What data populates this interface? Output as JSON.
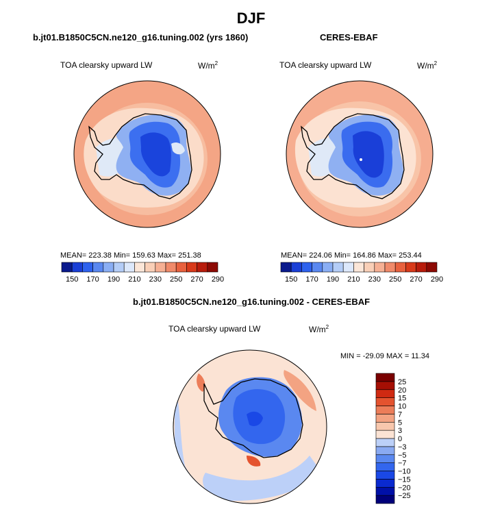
{
  "page": {
    "title": "DJF"
  },
  "panels": [
    {
      "title": "b.jt01.B1850C5CN.ne120_g16.tuning.002 (yrs 1860)",
      "variable": "TOA clearsky upward LW",
      "units_base": "W/m",
      "units_exp": "2",
      "stats": "MEAN= 223.38  Min= 159.63  Max= 251.38"
    },
    {
      "title": "CERES-EBAF",
      "variable": "TOA clearsky upward LW",
      "units_base": "W/m",
      "units_exp": "2",
      "stats": "MEAN= 224.06  Min= 164.86  Max= 253.44"
    },
    {
      "title": "b.jt01.B1850C5CN.ne120_g16.tuning.002 - CERES-EBAF",
      "variable": "TOA clearsky upward LW",
      "units_base": "W/m",
      "units_exp": "2",
      "stats": "MIN = -29.09 MAX =  11.34"
    }
  ],
  "chart_data": [
    {
      "type": "heatmap",
      "projection": "south polar stereographic",
      "title": "b.jt01.B1850C5CN.ne120_g16.tuning.002 (yrs 1860)",
      "variable": "TOA clearsky upward LW",
      "units": "W/m^2",
      "mean": 223.38,
      "min": 159.63,
      "max": 251.38,
      "colorbar": {
        "orientation": "horizontal",
        "levels": [
          150,
          170,
          190,
          210,
          230,
          250,
          270,
          290
        ],
        "colors": [
          "#0a1a8c",
          "#1a3fd6",
          "#2e62ee",
          "#5a88f0",
          "#8aaef4",
          "#b4cdf7",
          "#dce8fb",
          "#fbe6d8",
          "#f9cfb7",
          "#f6b094",
          "#f08a6a",
          "#e8613e",
          "#d83a1a",
          "#b81c0c",
          "#8c0a04"
        ]
      }
    },
    {
      "type": "heatmap",
      "projection": "south polar stereographic",
      "title": "CERES-EBAF",
      "variable": "TOA clearsky upward LW",
      "units": "W/m^2",
      "mean": 224.06,
      "min": 164.86,
      "max": 253.44,
      "colorbar": {
        "orientation": "horizontal",
        "levels": [
          150,
          170,
          190,
          210,
          230,
          250,
          270,
          290
        ],
        "colors": [
          "#0a1a8c",
          "#1a3fd6",
          "#2e62ee",
          "#5a88f0",
          "#8aaef4",
          "#b4cdf7",
          "#dce8fb",
          "#fbe6d8",
          "#f9cfb7",
          "#f6b094",
          "#f08a6a",
          "#e8613e",
          "#d83a1a",
          "#b81c0c",
          "#8c0a04"
        ]
      }
    },
    {
      "type": "heatmap",
      "projection": "south polar stereographic",
      "title": "b.jt01.B1850C5CN.ne120_g16.tuning.002 - CERES-EBAF",
      "variable": "TOA clearsky upward LW",
      "units": "W/m^2",
      "min": -29.09,
      "max": 11.34,
      "colorbar": {
        "orientation": "vertical",
        "levels": [
          -25,
          -20,
          -15,
          -10,
          -7,
          -5,
          -3,
          0,
          3,
          5,
          7,
          10,
          15,
          20,
          25
        ],
        "level_labels": [
          "−25",
          "−20",
          "−15",
          "−10",
          "−7",
          "−5",
          "−3",
          "0",
          "3",
          "5",
          "7",
          "10",
          "15",
          "20",
          "25"
        ],
        "colors": [
          "#00007a",
          "#0010a8",
          "#0a2ad0",
          "#1a48e6",
          "#3366ee",
          "#5a88f0",
          "#8aaaf2",
          "#bcd0f8",
          "#fbe3d4",
          "#f8c7ad",
          "#f3a382",
          "#ec7d59",
          "#e4532f",
          "#cf2a12",
          "#a50f04",
          "#7a0000"
        ]
      }
    }
  ]
}
